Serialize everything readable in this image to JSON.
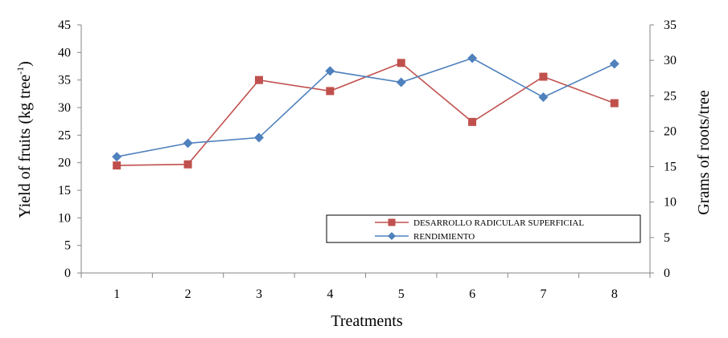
{
  "chart_data": {
    "type": "line",
    "title": "",
    "x": [
      "1",
      "2",
      "3",
      "4",
      "5",
      "6",
      "7",
      "8"
    ],
    "xlabel": "Treatments",
    "ylabel_left": "Yield of fruits (kg tree",
    "ylabel_left_sup": "-1",
    "ylabel_left_end": ")",
    "ylabel_right": "Grams of roots/tree",
    "ylim_left": [
      0,
      45
    ],
    "ylim_right": [
      0,
      35
    ],
    "yticks_left": [
      "0",
      "5",
      "10",
      "15",
      "20",
      "25",
      "30",
      "35",
      "40",
      "45"
    ],
    "yticks_right": [
      "0",
      "5",
      "10",
      "15",
      "20",
      "25",
      "30",
      "35"
    ],
    "grid": false,
    "legend_position": "lower-right",
    "series": [
      {
        "name": "DESARROLLO RADICULAR SUPERFICIAL",
        "axis": "left",
        "marker": "square",
        "color": "#C0504D",
        "values": [
          19.5,
          19.7,
          35.0,
          33.0,
          38.1,
          27.4,
          35.6,
          30.8
        ]
      },
      {
        "name": "RENDIMIENTO",
        "axis": "right",
        "marker": "diamond",
        "color": "#4F81BD",
        "values": [
          16.4,
          18.3,
          19.1,
          28.5,
          26.9,
          30.3,
          24.8,
          29.5
        ]
      }
    ]
  }
}
